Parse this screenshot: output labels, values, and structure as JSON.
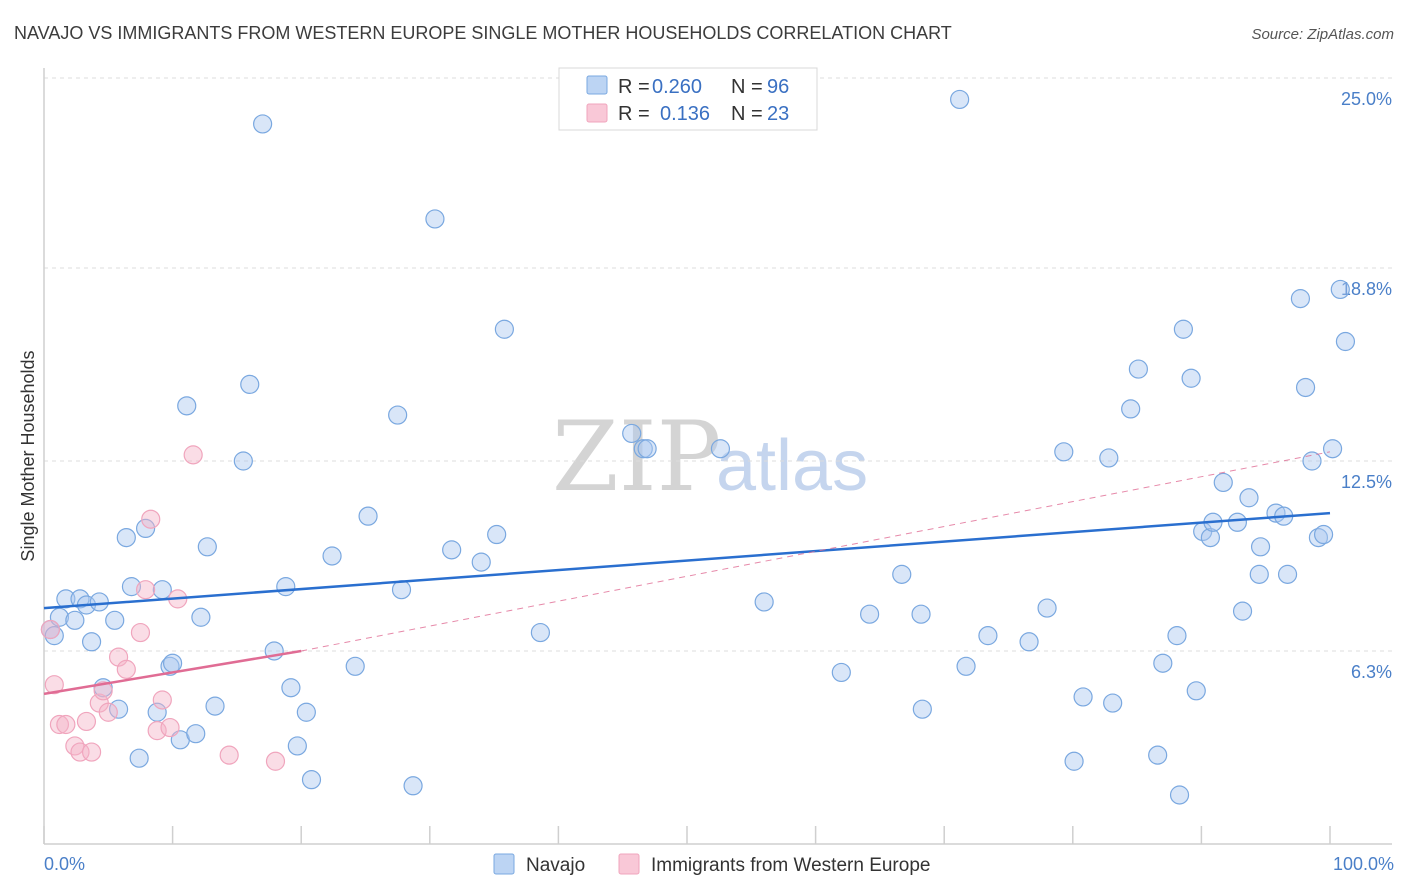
{
  "chart_data": {
    "type": "scatter",
    "title": "NAVAJO VS IMMIGRANTS FROM WESTERN EUROPE SINGLE MOTHER HOUSEHOLDS CORRELATION CHART",
    "source": "Source: ZipAtlas.com",
    "ylabel": "Single Mother Households",
    "xlim": [
      0,
      100
    ],
    "ylim": [
      0,
      25
    ],
    "x_tick_labels": {
      "min": "0.0%",
      "max": "100.0%"
    },
    "y_ticks": [
      {
        "value": 6.3,
        "label": "6.3%"
      },
      {
        "value": 12.5,
        "label": "12.5%"
      },
      {
        "value": 18.8,
        "label": "18.8%"
      },
      {
        "value": 25.0,
        "label": "25.0%"
      }
    ],
    "watermark": {
      "zip": "ZIP",
      "atlas": "atlas"
    },
    "legend": {
      "rows": [
        {
          "r_label": "R = ",
          "r_value": "0.260",
          "n_label": "N = ",
          "n_value": "96"
        },
        {
          "r_label": "R = ",
          "r_value": "0.136",
          "n_label": "N = ",
          "n_value": "23"
        }
      ]
    },
    "series": [
      {
        "name": "Navajo",
        "color": "#7aa8e0",
        "line_color": "#2a6fcf",
        "trend": {
          "x0": 0,
          "y0": 7.7,
          "x1": 100,
          "y1": 10.8
        },
        "points": [
          [
            0.5,
            7.0
          ],
          [
            0.8,
            6.8
          ],
          [
            1.2,
            7.4
          ],
          [
            1.7,
            8.0
          ],
          [
            2.4,
            7.3
          ],
          [
            2.8,
            8.0
          ],
          [
            3.3,
            7.8
          ],
          [
            3.7,
            6.6
          ],
          [
            4.3,
            7.9
          ],
          [
            4.6,
            5.1
          ],
          [
            5.5,
            7.3
          ],
          [
            5.8,
            4.4
          ],
          [
            6.4,
            10.0
          ],
          [
            6.8,
            8.4
          ],
          [
            7.4,
            2.8
          ],
          [
            7.9,
            10.3
          ],
          [
            8.8,
            4.3
          ],
          [
            9.2,
            8.3
          ],
          [
            9.8,
            5.8
          ],
          [
            10.0,
            5.9
          ],
          [
            10.6,
            3.4
          ],
          [
            11.1,
            14.3
          ],
          [
            11.8,
            3.6
          ],
          [
            12.2,
            7.4
          ],
          [
            12.7,
            9.7
          ],
          [
            13.3,
            4.5
          ],
          [
            15.5,
            12.5
          ],
          [
            16.0,
            15.0
          ],
          [
            17.0,
            23.5
          ],
          [
            17.9,
            6.3
          ],
          [
            18.8,
            8.4
          ],
          [
            19.2,
            5.1
          ],
          [
            19.7,
            3.2
          ],
          [
            20.4,
            4.3
          ],
          [
            20.8,
            2.1
          ],
          [
            22.4,
            9.4
          ],
          [
            24.2,
            5.8
          ],
          [
            25.2,
            10.7
          ],
          [
            27.5,
            14.0
          ],
          [
            27.8,
            8.3
          ],
          [
            28.7,
            1.9
          ],
          [
            30.4,
            20.4
          ],
          [
            31.7,
            9.6
          ],
          [
            34.0,
            9.2
          ],
          [
            35.2,
            10.1
          ],
          [
            35.8,
            16.8
          ],
          [
            38.6,
            6.9
          ],
          [
            45.7,
            13.4
          ],
          [
            46.6,
            12.9
          ],
          [
            46.9,
            12.9
          ],
          [
            52.6,
            12.9
          ],
          [
            56.0,
            7.9
          ],
          [
            62.0,
            5.6
          ],
          [
            64.2,
            7.5
          ],
          [
            66.7,
            8.8
          ],
          [
            68.2,
            7.5
          ],
          [
            68.3,
            4.4
          ],
          [
            71.2,
            24.3
          ],
          [
            71.7,
            5.8
          ],
          [
            73.4,
            6.8
          ],
          [
            76.6,
            6.6
          ],
          [
            78.0,
            7.7
          ],
          [
            79.3,
            12.8
          ],
          [
            80.1,
            2.7
          ],
          [
            80.8,
            4.8
          ],
          [
            82.8,
            12.6
          ],
          [
            83.1,
            4.6
          ],
          [
            84.5,
            14.2
          ],
          [
            85.1,
            15.5
          ],
          [
            86.6,
            2.9
          ],
          [
            87.0,
            5.9
          ],
          [
            88.1,
            6.8
          ],
          [
            88.3,
            1.6
          ],
          [
            88.6,
            16.8
          ],
          [
            89.2,
            15.2
          ],
          [
            89.6,
            5.0
          ],
          [
            90.1,
            10.2
          ],
          [
            90.7,
            10.0
          ],
          [
            90.9,
            10.5
          ],
          [
            91.7,
            11.8
          ],
          [
            92.8,
            10.5
          ],
          [
            93.2,
            7.6
          ],
          [
            93.7,
            11.3
          ],
          [
            94.6,
            9.7
          ],
          [
            94.5,
            8.8
          ],
          [
            95.8,
            10.8
          ],
          [
            96.4,
            10.7
          ],
          [
            96.7,
            8.8
          ],
          [
            97.7,
            17.8
          ],
          [
            98.1,
            14.9
          ],
          [
            98.6,
            12.5
          ],
          [
            99.1,
            10.0
          ],
          [
            99.5,
            10.1
          ],
          [
            100.2,
            12.9
          ],
          [
            100.8,
            18.1
          ],
          [
            101.2,
            16.4
          ]
        ]
      },
      {
        "name": "Immigrants from Western Europe",
        "color": "#f0a5bd",
        "line_color": "#e06c94",
        "trend": {
          "x0": 0,
          "y0": 4.9,
          "x1": 20,
          "y1": 6.3
        },
        "trend_dashed": {
          "x0": 20,
          "y0": 6.3,
          "x1": 100,
          "y1": 12.8
        },
        "points": [
          [
            0.5,
            7.0
          ],
          [
            0.8,
            5.2
          ],
          [
            1.2,
            3.9
          ],
          [
            1.7,
            3.9
          ],
          [
            2.4,
            3.2
          ],
          [
            2.8,
            3.0
          ],
          [
            3.3,
            4.0
          ],
          [
            3.7,
            3.0
          ],
          [
            4.3,
            4.6
          ],
          [
            4.6,
            5.0
          ],
          [
            5.0,
            4.3
          ],
          [
            5.8,
            6.1
          ],
          [
            6.4,
            5.7
          ],
          [
            7.5,
            6.9
          ],
          [
            7.9,
            8.3
          ],
          [
            8.3,
            10.6
          ],
          [
            8.8,
            3.7
          ],
          [
            9.2,
            4.7
          ],
          [
            9.8,
            3.8
          ],
          [
            10.4,
            8.0
          ],
          [
            11.6,
            12.7
          ],
          [
            14.4,
            2.9
          ],
          [
            18.0,
            2.7
          ]
        ]
      }
    ]
  }
}
